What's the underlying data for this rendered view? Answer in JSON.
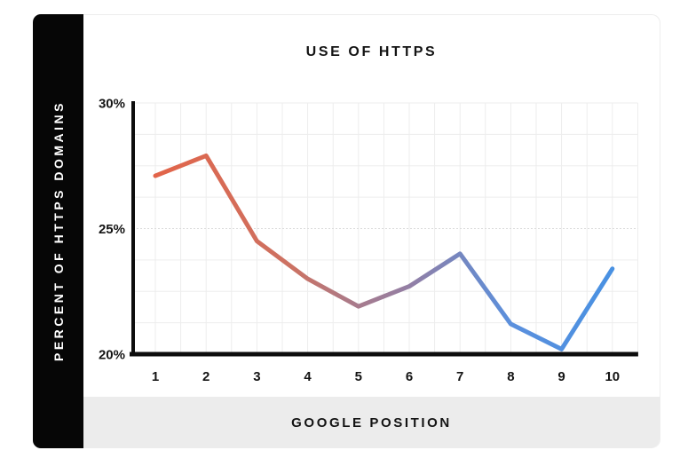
{
  "chart_data": {
    "type": "line",
    "title": "USE OF HTTPS",
    "xlabel": "GOOGLE POSITION",
    "ylabel": "PERCENT OF HTTPS DOMAINS",
    "categories": [
      1,
      2,
      3,
      4,
      5,
      6,
      7,
      8,
      9,
      10
    ],
    "values": [
      27.1,
      27.9,
      24.5,
      23.0,
      21.9,
      22.7,
      24.0,
      21.2,
      20.2,
      23.4
    ],
    "ylim": [
      20,
      30
    ],
    "yticks": [
      20,
      25,
      30
    ],
    "ytick_labels": [
      "20%",
      "25%",
      "30%"
    ],
    "grid": "on",
    "grid_step_y_pct": 1.25,
    "legend": "none",
    "line_style": "gradient left-to-right",
    "line_gradient_stops": [
      {
        "offset": 0.0,
        "color": "#e26449"
      },
      {
        "offset": 0.3,
        "color": "#cc7263"
      },
      {
        "offset": 0.44,
        "color": "#a87b8c"
      },
      {
        "offset": 0.56,
        "color": "#927fa6"
      },
      {
        "offset": 0.67,
        "color": "#7487c1"
      },
      {
        "offset": 0.78,
        "color": "#5b90dd"
      },
      {
        "offset": 1.0,
        "color": "#4991e2"
      }
    ]
  },
  "colors": {
    "sidebar_bg": "#060606",
    "sidebar_text": "#ffffff",
    "bottom_bar_bg": "#ececec",
    "card_border": "#ededed",
    "grid_line": "#ededed",
    "axis_line": "#0d0d0d",
    "tick_text": "#141414"
  }
}
